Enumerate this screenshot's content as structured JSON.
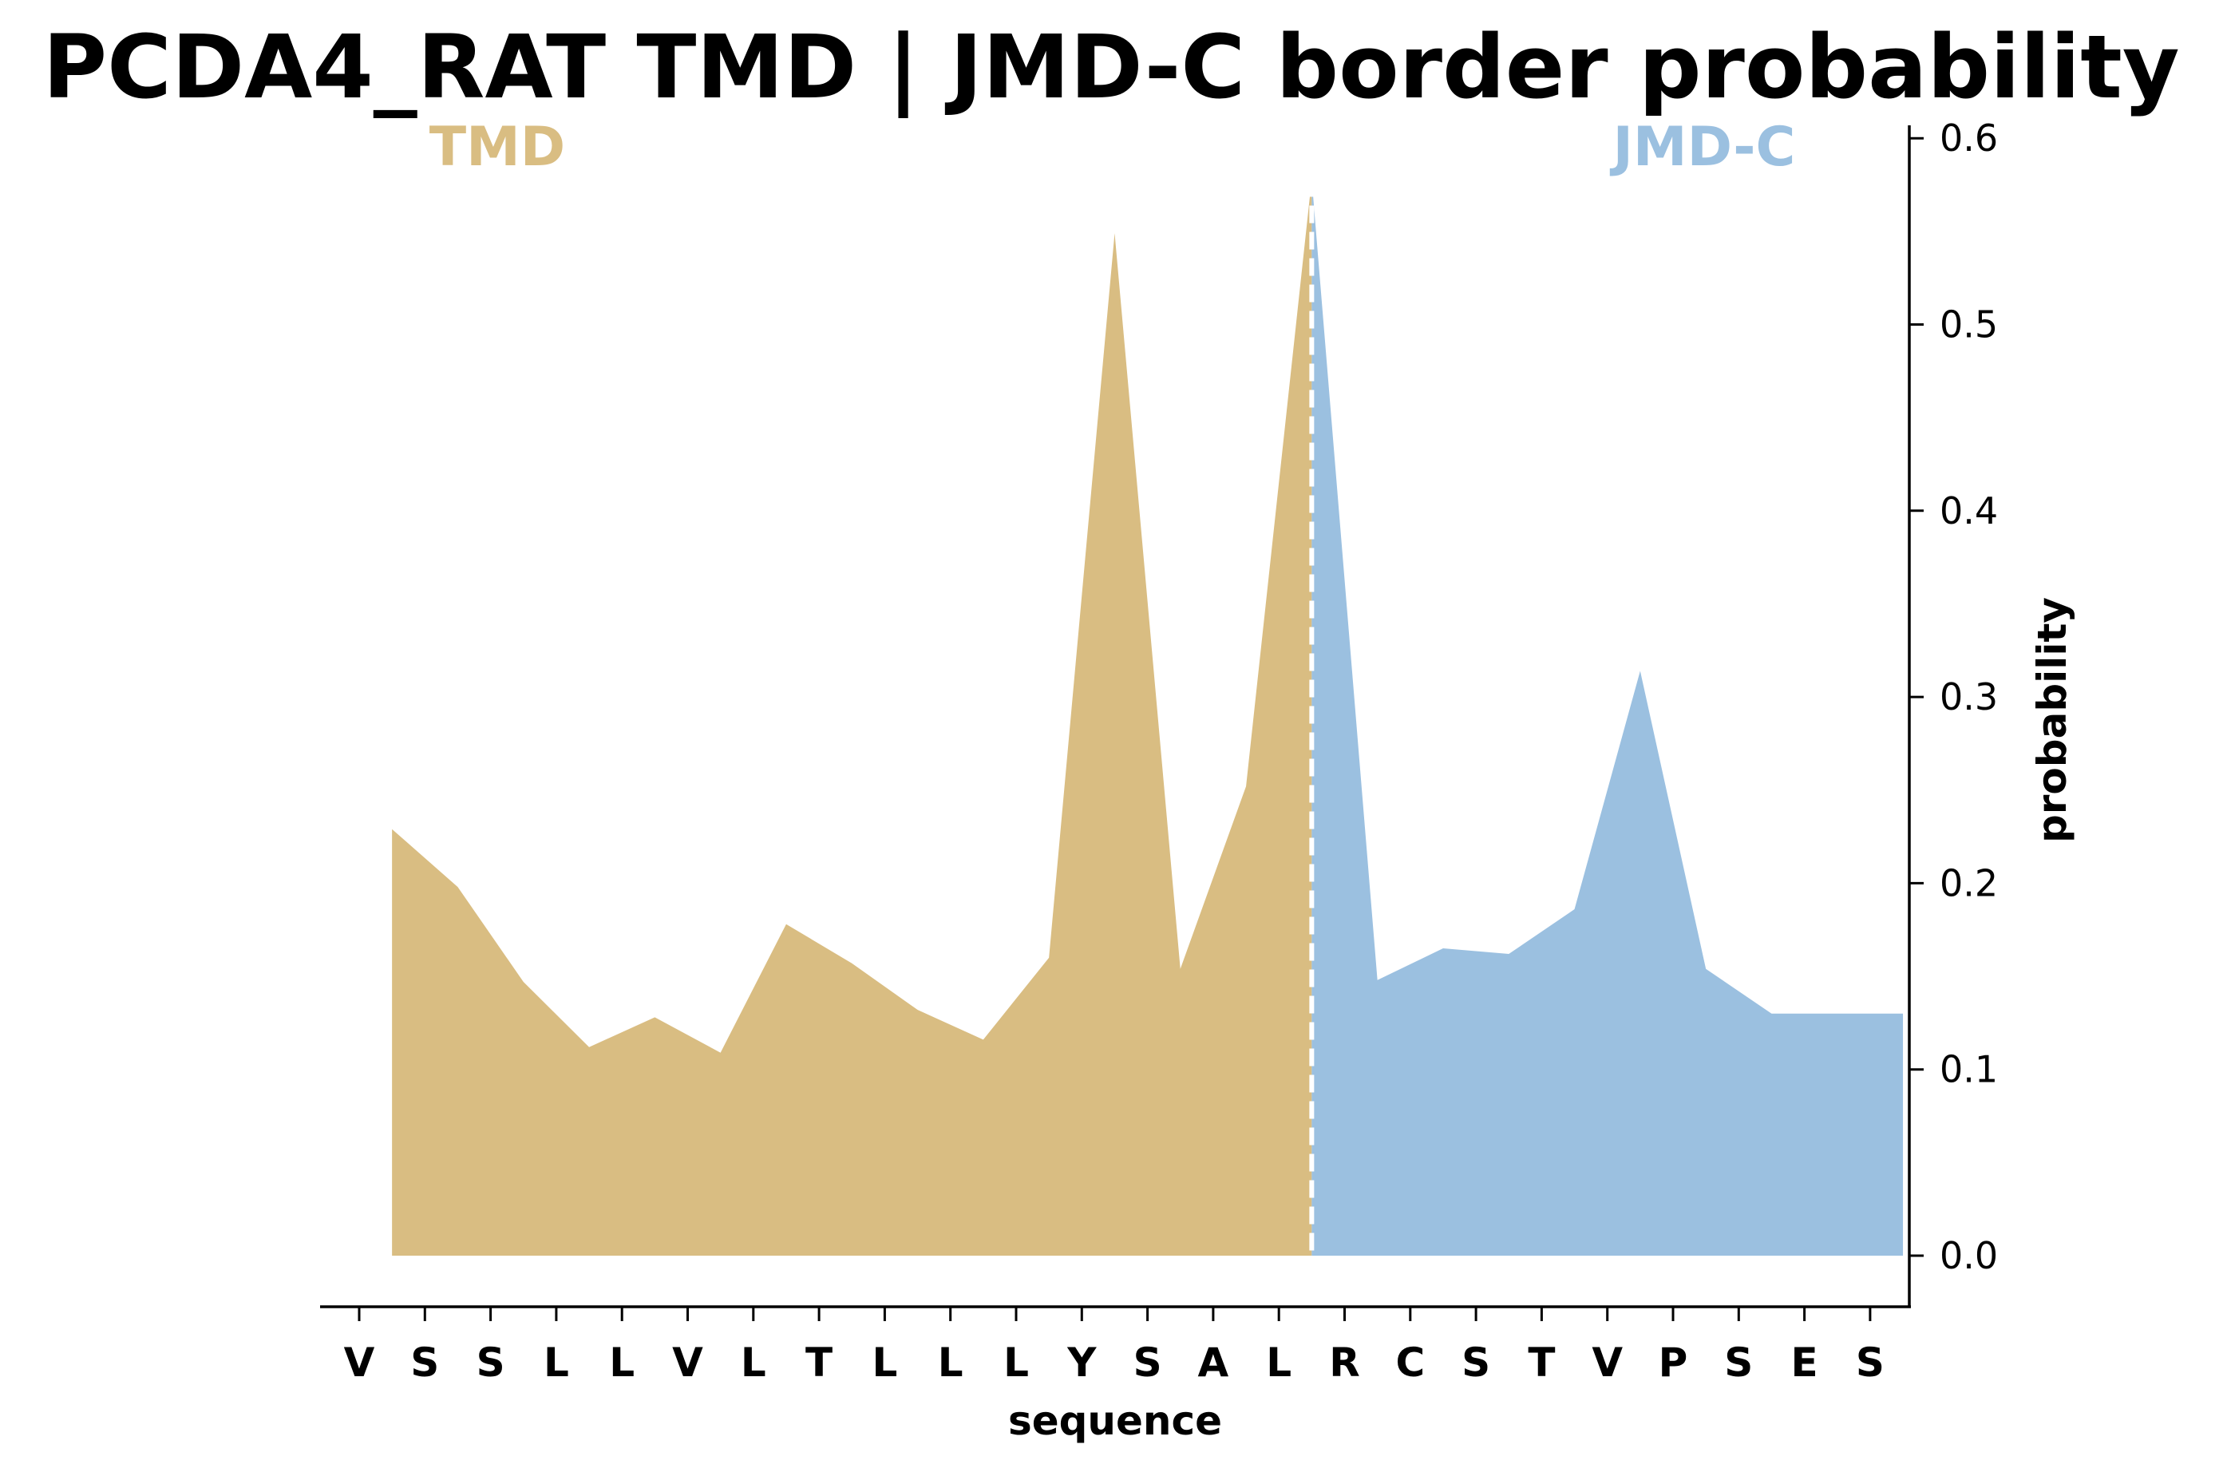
{
  "chart_data": {
    "type": "area",
    "title": "PCDA4_RAT TMD | JMD-C border probability",
    "xlabel": "sequence",
    "ylabel": "probability",
    "ylim": [
      -0.028,
      0.605
    ],
    "yticks": [
      "0.0",
      "0.1",
      "0.2",
      "0.3",
      "0.4",
      "0.5",
      "0.6"
    ],
    "categories": [
      "V",
      "S",
      "S",
      "L",
      "L",
      "V",
      "L",
      "T",
      "L",
      "L",
      "L",
      "Y",
      "S",
      "A",
      "L",
      "R",
      "C",
      "S",
      "T",
      "V",
      "P",
      "S",
      "E",
      "S"
    ],
    "border_x": 14.5,
    "regions": [
      {
        "name": "TMD",
        "color": "#d9bd82",
        "x_range": [
          0.5,
          14.5
        ]
      },
      {
        "name": "JMD-C",
        "color": "#9bc0e0",
        "x_range": [
          14.5,
          23.5
        ]
      }
    ],
    "series": [
      {
        "x": [
          0.5,
          1.5,
          2.5,
          3.5,
          4.5,
          5.5,
          6.5,
          7.5,
          8.5,
          9.5,
          10.5,
          11.5,
          12.5,
          13.5,
          14.5,
          15.5,
          16.5,
          17.5,
          18.5,
          19.5,
          20.5,
          21.5,
          22.5,
          23.5
        ],
        "values": [
          0.229,
          0.198,
          0.147,
          0.112,
          0.128,
          0.109,
          0.178,
          0.157,
          0.132,
          0.116,
          0.16,
          0.549,
          0.154,
          0.252,
          0.578,
          0.148,
          0.165,
          0.162,
          0.186,
          0.314,
          0.154,
          0.13,
          0.13,
          0.13
        ]
      }
    ],
    "legend": "none",
    "grid": false
  }
}
